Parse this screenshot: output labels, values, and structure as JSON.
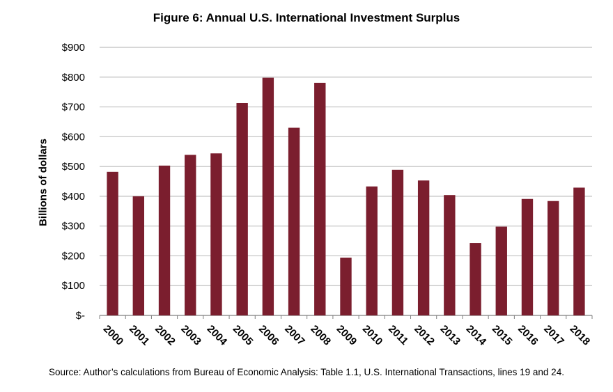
{
  "title": "Figure 6: Annual U.S. International Investment Surplus",
  "source": "Source: Author’s calculations from Bureau of Economic Analysis: Table 1.1, U.S. International Transactions, lines 19 and 24.",
  "colors": {
    "bar": "#7b1e2e",
    "grid": "#bfbfbf",
    "axis": "#7f7f7f"
  },
  "chart_data": {
    "type": "bar",
    "title": "Figure 6: Annual U.S. International Investment Surplus",
    "xlabel": "",
    "ylabel": "Billions of dollars",
    "ylim": [
      0,
      900
    ],
    "grid": true,
    "legend": "none",
    "yticks": [
      0,
      100,
      200,
      300,
      400,
      500,
      600,
      700,
      800,
      900
    ],
    "ytick_labels": [
      "$-",
      "$100",
      "$200",
      "$300",
      "$400",
      "$500",
      "$600",
      "$700",
      "$800",
      "$900"
    ],
    "categories": [
      "2000",
      "2001",
      "2002",
      "2003",
      "2004",
      "2005",
      "2006",
      "2007",
      "2008",
      "2009",
      "2010",
      "2011",
      "2012",
      "2013",
      "2014",
      "2015",
      "2016",
      "2017",
      "2018"
    ],
    "values": [
      482,
      400,
      503,
      539,
      544,
      713,
      798,
      630,
      781,
      194,
      433,
      489,
      453,
      404,
      243,
      298,
      391,
      384,
      429
    ]
  }
}
